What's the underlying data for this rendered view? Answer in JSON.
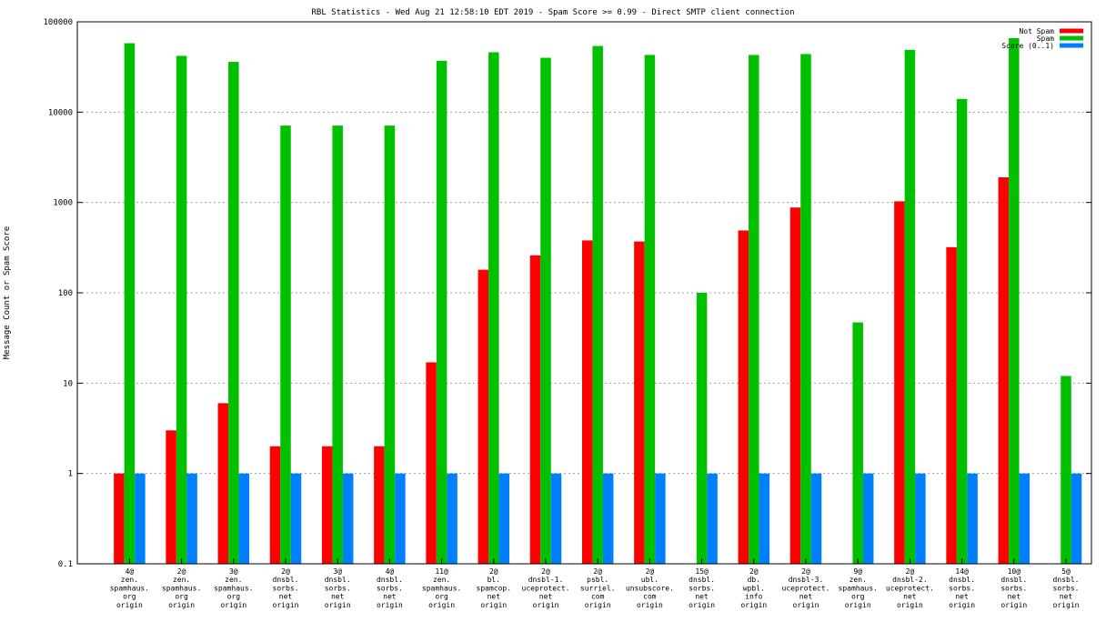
{
  "chart_data": {
    "type": "bar",
    "title": "RBL Statistics - Wed Aug 21 12:58:10 EDT 2019 - Spam Score >= 0.99 - Direct SMTP client connection",
    "ylabel": "Message Count or Spam Score",
    "xlabel": "",
    "yscale": "log",
    "ylim": [
      0.1,
      100000
    ],
    "yticks": [
      "0.1",
      "1",
      "10",
      "100",
      "1000",
      "10000",
      "100000"
    ],
    "grid": true,
    "legend_position": "top-right",
    "categories": [
      [
        "4@",
        "zen.",
        "spamhaus.",
        "org",
        "origin"
      ],
      [
        "2@",
        "zen.",
        "spamhaus.",
        "org",
        "origin"
      ],
      [
        "3@",
        "zen.",
        "spamhaus.",
        "org",
        "origin"
      ],
      [
        "2@",
        "dnsbl.",
        "sorbs.",
        "net",
        "origin"
      ],
      [
        "3@",
        "dnsbl.",
        "sorbs.",
        "net",
        "origin"
      ],
      [
        "4@",
        "dnsbl.",
        "sorbs.",
        "net",
        "origin"
      ],
      [
        "11@",
        "zen.",
        "spamhaus.",
        "org",
        "origin"
      ],
      [
        "2@",
        "bl.",
        "spamcop.",
        "net",
        "origin"
      ],
      [
        "2@",
        "dnsbl-1.",
        "uceprotect.",
        "net",
        "origin"
      ],
      [
        "2@",
        "psbl.",
        "surriel.",
        "com",
        "origin"
      ],
      [
        "2@",
        "ubl.",
        "unsubscore.",
        "com",
        "origin"
      ],
      [
        "15@",
        "dnsbl.",
        "sorbs.",
        "net",
        "origin"
      ],
      [
        "2@",
        "db.",
        "wpbl.",
        "info",
        "origin"
      ],
      [
        "2@",
        "dnsbl-3.",
        "uceprotect.",
        "net",
        "origin"
      ],
      [
        "9@",
        "zen.",
        "spamhaus.",
        "org",
        "origin"
      ],
      [
        "2@",
        "dnsbl-2.",
        "uceprotect.",
        "net",
        "origin"
      ],
      [
        "14@",
        "dnsbl.",
        "sorbs.",
        "net",
        "origin"
      ],
      [
        "10@",
        "dnsbl.",
        "sorbs.",
        "net",
        "origin"
      ],
      [
        "5@",
        "dnsbl.",
        "sorbs.",
        "net",
        "origin"
      ]
    ],
    "series": [
      {
        "name": "Not Spam",
        "color": "#ff0000",
        "values": [
          1,
          3,
          6,
          2,
          2,
          2,
          17,
          180,
          260,
          380,
          370,
          0,
          490,
          880,
          0,
          1030,
          320,
          1900,
          0
        ]
      },
      {
        "name": "Spam",
        "color": "#00c000",
        "values": [
          58000,
          42000,
          36000,
          7100,
          7100,
          7100,
          37000,
          46000,
          40000,
          54000,
          43000,
          100,
          43000,
          44000,
          47,
          49000,
          14000,
          66000,
          12
        ]
      },
      {
        "name": "Score (0..1)",
        "color": "#0080ff",
        "values": [
          1,
          1,
          1,
          1,
          1,
          1,
          1,
          1,
          1,
          1,
          1,
          1,
          1,
          1,
          1,
          1,
          1,
          1,
          1
        ]
      }
    ]
  }
}
